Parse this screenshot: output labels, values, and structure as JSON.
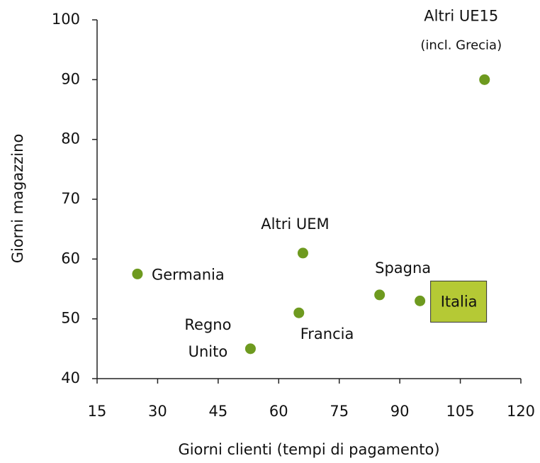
{
  "chart_data": {
    "type": "scatter",
    "x_label": "Giorni clienti (tempi di pagamento)",
    "y_label": "Giorni magazzino",
    "point_labels": [
      [
        "Germania"
      ],
      [
        "Altri UEM"
      ],
      [
        "Francia"
      ],
      [
        "Regno",
        "Unito"
      ],
      [
        "Spagna"
      ],
      [
        "Italia"
      ],
      [
        "Altri UE15",
        "(incl. Grecia)"
      ]
    ],
    "x": [
      25,
      66,
      65,
      53,
      85,
      95,
      111
    ],
    "values": [
      57.5,
      61,
      51,
      45,
      54,
      53,
      90
    ],
    "color": "#6e9a1f",
    "highlight_color": "#b5c935",
    "xlim": [
      15,
      120
    ],
    "xticks": [
      15,
      30,
      45,
      60,
      75,
      90,
      105,
      120
    ],
    "ylim": [
      40,
      100
    ],
    "yticks": [
      40,
      50,
      60,
      70,
      80,
      90,
      100
    ]
  }
}
